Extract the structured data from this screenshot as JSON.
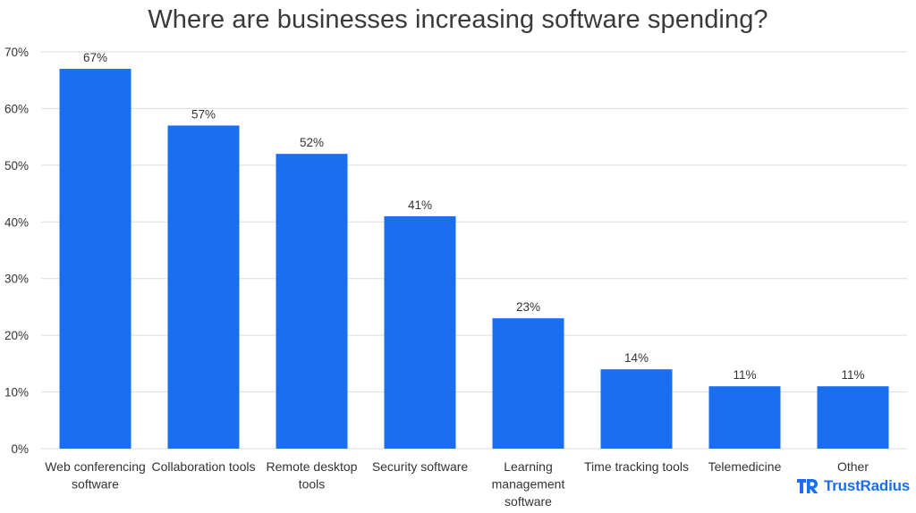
{
  "chart_data": {
    "type": "bar",
    "title": "Where are businesses increasing software spending?",
    "categories": [
      "Web conferencing software",
      "Collaboration tools",
      "Remote desktop tools",
      "Security software",
      "Learning management software",
      "Time tracking tools",
      "Telemedicine",
      "Other"
    ],
    "category_lines": [
      [
        "Web conferencing",
        "software"
      ],
      [
        "Collaboration tools"
      ],
      [
        "Remote desktop",
        "tools"
      ],
      [
        "Security software"
      ],
      [
        "Learning",
        "management",
        "software"
      ],
      [
        "Time tracking tools"
      ],
      [
        "Telemedicine"
      ],
      [
        "Other"
      ]
    ],
    "values": [
      67,
      57,
      52,
      41,
      23,
      14,
      11,
      11
    ],
    "data_labels": [
      "67%",
      "57%",
      "52%",
      "41%",
      "23%",
      "14%",
      "11%",
      "11%"
    ],
    "yticks": [
      0,
      10,
      20,
      30,
      40,
      50,
      60,
      70
    ],
    "ytick_labels": [
      "0%",
      "10%",
      "20%",
      "30%",
      "40%",
      "50%",
      "60%",
      "70%"
    ],
    "ylim": [
      0,
      70
    ],
    "xlabel": "",
    "ylabel": "",
    "grid": true,
    "bar_color": "#1a6ef0",
    "grid_color": "#dcdcdc"
  },
  "brand": {
    "name": "TrustRadius",
    "logo_icon": "trustradius-logo-icon",
    "color": "#1a6ef0"
  }
}
